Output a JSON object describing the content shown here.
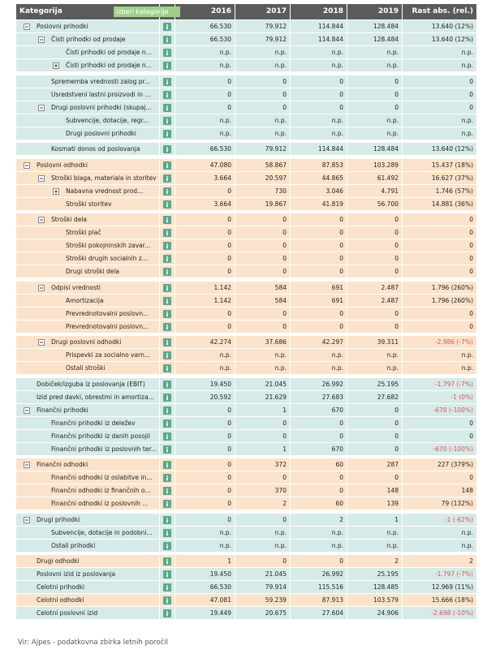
{
  "table": {
    "columns": [
      "Kategorija",
      "2016",
      "2017",
      "2018",
      "2019",
      "Rast abs. (rel.)"
    ],
    "filter_button": "izberi kategorije",
    "sections": [
      {
        "rows": [
          {
            "label": "Poslovni prihodki",
            "level": 0,
            "toggle": "minus",
            "color": "#d6ebe7",
            "values": [
              "66.530",
              "79.912",
              "114.844",
              "128.484",
              "13.640 (12%)"
            ]
          },
          {
            "label": "Čisti prihodki od prodaje",
            "level": 1,
            "toggle": "minus",
            "color": "#d6ebe7",
            "values": [
              "66.530",
              "79.912",
              "114.844",
              "128.484",
              "13.640 (12%)"
            ]
          },
          {
            "label": "Čisti prihodki od prodaje n...",
            "level": 2,
            "color": "#d6ebe7",
            "values": [
              "n.p.",
              "n.p.",
              "n.p.",
              "n.p.",
              "n.p."
            ]
          },
          {
            "label": "Čisti prihodki od prodaje n...",
            "level": 2,
            "toggle": "plus",
            "color": "#d6ebe7",
            "values": [
              "n.p.",
              "n.p.",
              "n.p.",
              "n.p.",
              "n.p."
            ]
          }
        ]
      },
      {
        "rows": [
          {
            "label": "Sprememba vrednosti zalog pr...",
            "level": 1,
            "color": "#d6ebe7",
            "values": [
              "0",
              "0",
              "0",
              "0",
              "0"
            ]
          },
          {
            "label": "Usredstveni lastni proizvodi in ...",
            "level": 1,
            "color": "#d6ebe7",
            "values": [
              "0",
              "0",
              "0",
              "0",
              "0"
            ]
          },
          {
            "label": "Drugi poslovni prihodki (skupaj...",
            "level": 1,
            "toggle": "minus",
            "color": "#d6ebe7",
            "values": [
              "0",
              "0",
              "0",
              "0",
              "0"
            ]
          },
          {
            "label": "Subvencije, dotacije, regr...",
            "level": 2,
            "color": "#d6ebe7",
            "values": [
              "n.p.",
              "n.p.",
              "n.p.",
              "n.p.",
              "n.p."
            ]
          },
          {
            "label": "Drugi poslovni prihodki",
            "level": 2,
            "color": "#d6ebe7",
            "values": [
              "n.p.",
              "n.p.",
              "n.p.",
              "n.p.",
              "n.p."
            ]
          }
        ]
      },
      {
        "rows": [
          {
            "label": "Kosmati donos od poslovanja",
            "level": 1,
            "color": "#d6ebe7",
            "values": [
              "66.530",
              "79.912",
              "114.844",
              "128.484",
              "13.640 (12%)"
            ]
          }
        ]
      },
      {
        "rows": [
          {
            "label": "Poslovni odhodki",
            "level": 0,
            "toggle": "minus",
            "color": "#fbe3cb",
            "values": [
              "47.080",
              "58.867",
              "87.853",
              "103.289",
              "15.437 (18%)"
            ]
          },
          {
            "label": "Stroški blaga, materiala in storitev",
            "level": 1,
            "toggle": "minus",
            "color": "#fbe3cb",
            "values": [
              "3.664",
              "20.597",
              "44.865",
              "61.492",
              "16.627 (37%)"
            ]
          },
          {
            "label": "Nabavna vrednost prod...",
            "level": 2,
            "toggle": "plus",
            "color": "#fbe3cb",
            "values": [
              "0",
              "730",
              "3.046",
              "4.791",
              "1.746 (57%)"
            ]
          },
          {
            "label": "Stroški storitev",
            "level": 2,
            "color": "#fbe3cb",
            "values": [
              "3.664",
              "19.867",
              "41.819",
              "56.700",
              "14.881 (36%)"
            ]
          }
        ]
      },
      {
        "rows": [
          {
            "label": "Stroški dela",
            "level": 1,
            "toggle": "minus",
            "color": "#fbe3cb",
            "values": [
              "0",
              "0",
              "0",
              "0",
              "0"
            ]
          },
          {
            "label": "Stroški plač",
            "level": 2,
            "color": "#fbe3cb",
            "values": [
              "0",
              "0",
              "0",
              "0",
              "0"
            ]
          },
          {
            "label": "Stroški pokojninskih zavar...",
            "level": 2,
            "color": "#fbe3cb",
            "values": [
              "0",
              "0",
              "0",
              "0",
              "0"
            ]
          },
          {
            "label": "Stroški drugih socialnih z...",
            "level": 2,
            "color": "#fbe3cb",
            "values": [
              "0",
              "0",
              "0",
              "0",
              "0"
            ]
          },
          {
            "label": "Drugi stroški dela",
            "level": 2,
            "color": "#fbe3cb",
            "values": [
              "0",
              "0",
              "0",
              "0",
              "0"
            ]
          }
        ]
      },
      {
        "rows": [
          {
            "label": "Odpisi vrednosti",
            "level": 1,
            "toggle": "minus",
            "color": "#fbe3cb",
            "values": [
              "1.142",
              "584",
              "691",
              "2.487",
              "1.796 (260%)"
            ]
          },
          {
            "label": "Amortizacija",
            "level": 2,
            "color": "#fbe3cb",
            "values": [
              "1.142",
              "584",
              "691",
              "2.487",
              "1.796 (260%)"
            ]
          },
          {
            "label": "Prevrednotovalni poslovn...",
            "level": 2,
            "color": "#fbe3cb",
            "values": [
              "0",
              "0",
              "0",
              "0",
              "0"
            ]
          },
          {
            "label": "Prevrednotovalni poslovn...",
            "level": 2,
            "color": "#fbe3cb",
            "values": [
              "0",
              "0",
              "0",
              "0",
              "0"
            ]
          }
        ]
      },
      {
        "rows": [
          {
            "label": "Drugi poslovni odhodki",
            "level": 1,
            "toggle": "minus",
            "color": "#fbe3cb",
            "values": [
              "42.274",
              "37.686",
              "42.297",
              "39.311",
              "-2.986 (-7%)"
            ]
          },
          {
            "label": "Prispevki za socialno varn...",
            "level": 2,
            "color": "#fbe3cb",
            "values": [
              "n.p.",
              "n.p.",
              "n.p.",
              "n.p.",
              "n.p."
            ]
          },
          {
            "label": "Ostali stroški",
            "level": 2,
            "color": "#fbe3cb",
            "values": [
              "n.p.",
              "n.p.",
              "n.p.",
              "n.p.",
              "n.p."
            ]
          }
        ]
      },
      {
        "rows": [
          {
            "label": "Dobiček/izguba iz poslovanja (EBIT)",
            "level": 0,
            "color": "#d6ebe7",
            "values": [
              "19.450",
              "21.045",
              "26.992",
              "25.195",
              "-1.797 (-7%)"
            ]
          },
          {
            "label": "Izid pred davki, obrestmi in amortiza...",
            "level": 0,
            "color": "#d6ebe7",
            "values": [
              "20.592",
              "21.629",
              "27.683",
              "27.682",
              "-1 (0%)"
            ]
          },
          {
            "label": "Finančni prihodki",
            "level": 0,
            "toggle": "minus",
            "color": "#d6ebe7",
            "values": [
              "0",
              "1",
              "670",
              "0",
              "-670 (-100%)"
            ]
          },
          {
            "label": "Finančni prihodki iz deležev",
            "level": 1,
            "color": "#d6ebe7",
            "values": [
              "0",
              "0",
              "0",
              "0",
              "0"
            ]
          },
          {
            "label": "Finančni prihodki iz danih posojil",
            "level": 1,
            "color": "#d6ebe7",
            "values": [
              "0",
              "0",
              "0",
              "0",
              "0"
            ]
          },
          {
            "label": "Finančni prihodki iz poslovnih ter...",
            "level": 1,
            "color": "#d6ebe7",
            "values": [
              "0",
              "1",
              "670",
              "0",
              "-670 (-100%)"
            ]
          }
        ]
      },
      {
        "rows": [
          {
            "label": "Finančni odhodki",
            "level": 0,
            "toggle": "minus",
            "color": "#fbe3cb",
            "values": [
              "0",
              "372",
              "60",
              "287",
              "227 (379%)"
            ]
          },
          {
            "label": "Finančni odhodki iz oslabitve in...",
            "level": 1,
            "color": "#fbe3cb",
            "values": [
              "0",
              "0",
              "0",
              "0",
              "0"
            ]
          },
          {
            "label": "Finančni odhodki iz finančnih o...",
            "level": 1,
            "color": "#fbe3cb",
            "values": [
              "0",
              "370",
              "0",
              "148",
              "148"
            ]
          },
          {
            "label": "Finančni odhodki iz poslovnih ...",
            "level": 1,
            "color": "#fbe3cb",
            "values": [
              "0",
              "2",
              "60",
              "139",
              "79 (132%)"
            ]
          }
        ]
      },
      {
        "rows": [
          {
            "label": "Drugi prihodki",
            "level": 0,
            "toggle": "minus",
            "color": "#d6ebe7",
            "values": [
              "0",
              "0",
              "2",
              "1",
              "-1 (-62%)"
            ]
          },
          {
            "label": "Subvencije, dotacije in podobni...",
            "level": 1,
            "color": "#d6ebe7",
            "values": [
              "n.p.",
              "n.p.",
              "n.p.",
              "n.p.",
              "n.p."
            ]
          },
          {
            "label": "Ostali prihodki",
            "level": 1,
            "color": "#d6ebe7",
            "values": [
              "n.p.",
              "n.p.",
              "n.p.",
              "n.p.",
              "n.p."
            ]
          }
        ]
      },
      {
        "rows": [
          {
            "label": "Drugi odhodki",
            "level": 0,
            "color": "#fbe3cb",
            "values": [
              "1",
              "0",
              "0",
              "2",
              "2"
            ]
          },
          {
            "label": "Poslovni izid iz poslovanja",
            "level": 0,
            "color": "#d6ebe7",
            "values": [
              "19.450",
              "21.045",
              "26.992",
              "25.195",
              "-1.797 (-7%)"
            ]
          },
          {
            "label": "Celotni prihodki",
            "level": 0,
            "color": "#d6ebe7",
            "values": [
              "66.530",
              "79.914",
              "115.516",
              "128.485",
              "12.969 (11%)"
            ]
          },
          {
            "label": "Celotni odhodki",
            "level": 0,
            "color": "#fbe3cb",
            "values": [
              "47.081",
              "59.239",
              "87.913",
              "103.579",
              "15.666 (18%)"
            ]
          },
          {
            "label": "Celotni poslovni izid",
            "level": 0,
            "color": "#d6ebe7",
            "values": [
              "19.449",
              "20.675",
              "27.604",
              "24.906",
              "-2.698 (-10%)"
            ]
          }
        ]
      }
    ]
  },
  "footer": "Vir: Ajpes - podatkovna zbirka letnih poročil"
}
